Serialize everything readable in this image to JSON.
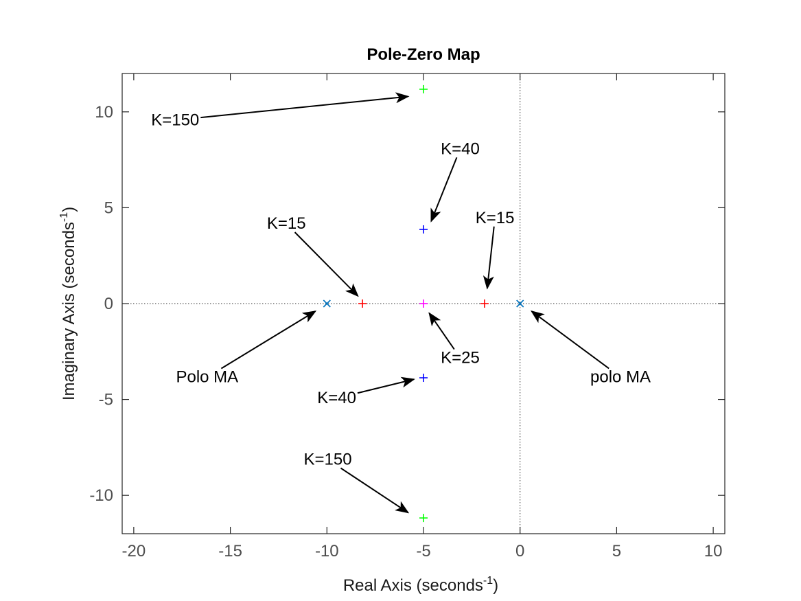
{
  "chart_data": {
    "type": "scatter",
    "title": "Pole-Zero Map",
    "xlabel": "Real Axis (seconds",
    "ylabel": "Imaginary Axis (seconds",
    "unit_exponent": "-1",
    "xlim": [
      -20.6,
      10.6
    ],
    "ylim": [
      -12.0,
      12.0
    ],
    "xticks": [
      -20,
      -15,
      -10,
      -5,
      0,
      5,
      10
    ],
    "yticks": [
      -10,
      -5,
      0,
      5,
      10
    ],
    "xtick_labels": [
      "-20",
      "-15",
      "-10",
      "-5",
      "0",
      "5",
      "10"
    ],
    "ytick_labels": [
      "-10",
      "-5",
      "0",
      "5",
      "10"
    ],
    "grid": false,
    "series": [
      {
        "marker": "x",
        "color": "#0072bd",
        "points": [
          [
            -10,
            0
          ],
          [
            0,
            0
          ]
        ]
      },
      {
        "marker": "+",
        "color": "#ff0000",
        "points": [
          [
            -8.16,
            0
          ],
          [
            -1.84,
            0
          ]
        ]
      },
      {
        "marker": "+",
        "color": "#ff00ff",
        "points": [
          [
            -5,
            0
          ]
        ]
      },
      {
        "marker": "+",
        "color": "#0000ff",
        "points": [
          [
            -5,
            3.87
          ],
          [
            -5,
            -3.87
          ]
        ]
      },
      {
        "marker": "+",
        "color": "#00ff00",
        "points": [
          [
            -5,
            11.18
          ],
          [
            -5,
            -11.18
          ]
        ]
      }
    ],
    "annotations": [
      {
        "text": "K=150",
        "at": [
          -19.1,
          9.3
        ],
        "anchor": "start",
        "to": [
          -5.8,
          10.8
        ]
      },
      {
        "text": "K=40",
        "at": [
          -3.1,
          7.8
        ],
        "anchor": "middle",
        "to": [
          -4.6,
          4.3
        ]
      },
      {
        "text": "K=15",
        "at": [
          -12.1,
          3.9
        ],
        "anchor": "middle",
        "to": [
          -8.4,
          0.4
        ]
      },
      {
        "text": "K=15",
        "at": [
          -1.3,
          4.2
        ],
        "anchor": "middle",
        "to": [
          -1.7,
          0.8
        ]
      },
      {
        "text": "Polo MA",
        "at": [
          -16.2,
          -4.1
        ],
        "anchor": "middle",
        "to": [
          -10.6,
          -0.4
        ]
      },
      {
        "text": "polo MA",
        "at": [
          5.2,
          -4.1
        ],
        "anchor": "middle",
        "to": [
          0.6,
          -0.4
        ]
      },
      {
        "text": "K=25",
        "at": [
          -3.1,
          -3.1
        ],
        "anchor": "middle",
        "to": [
          -4.7,
          -0.5
        ]
      },
      {
        "text": "K=40",
        "at": [
          -10.5,
          -5.2
        ],
        "anchor": "start",
        "to": [
          -5.5,
          -3.95
        ]
      },
      {
        "text": "K=150",
        "at": [
          -11.2,
          -8.4
        ],
        "anchor": "start",
        "to": [
          -5.8,
          -10.9
        ]
      }
    ]
  }
}
